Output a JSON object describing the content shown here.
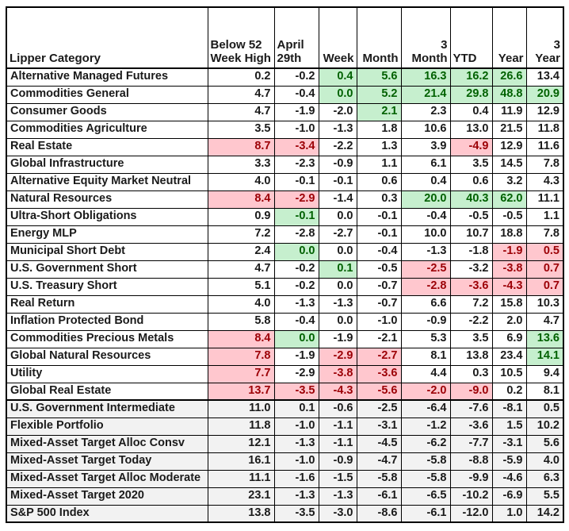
{
  "colors": {
    "positive_bg": "#c6efce",
    "positive_text": "#006100",
    "negative_bg": "#ffc7ce",
    "negative_text": "#9c0006",
    "summary_bg": "#f2f2f2",
    "grid": "#000000"
  },
  "chart_data": {
    "type": "table",
    "title": "",
    "columns": [
      "Lipper Category",
      "Below 52 Week High",
      "April 29th",
      "Week",
      "Month",
      "3 Month",
      "YTD",
      "Year",
      "3 Year"
    ],
    "highlight_legend": {
      "good": "green highlight",
      "bad": "pink highlight"
    },
    "rows": [
      {
        "category": "Alternative Managed Futures",
        "values": [
          0.2,
          -0.2,
          0.4,
          5.6,
          16.3,
          16.2,
          26.6,
          13.4
        ],
        "highlights": [
          "",
          "",
          "good",
          "good",
          "good",
          "good",
          "good",
          ""
        ],
        "section": "main"
      },
      {
        "category": "Commodities General",
        "values": [
          4.7,
          -0.4,
          0.0,
          5.2,
          21.4,
          29.8,
          48.8,
          20.9
        ],
        "highlights": [
          "",
          "",
          "good",
          "good",
          "good",
          "good",
          "good",
          "good"
        ],
        "section": "main"
      },
      {
        "category": "Consumer Goods",
        "values": [
          4.7,
          -1.9,
          -2.0,
          2.1,
          2.3,
          0.4,
          11.9,
          12.9
        ],
        "highlights": [
          "",
          "",
          "",
          "good",
          "",
          "",
          "",
          ""
        ],
        "section": "main"
      },
      {
        "category": "Commodities Agriculture",
        "values": [
          3.5,
          -1.0,
          -1.3,
          1.8,
          10.6,
          13.0,
          21.5,
          11.8
        ],
        "highlights": [
          "",
          "",
          "",
          "",
          "",
          "",
          "",
          ""
        ],
        "section": "main"
      },
      {
        "category": "Real Estate",
        "values": [
          8.7,
          -3.4,
          -2.2,
          1.3,
          3.9,
          -4.9,
          12.9,
          11.6
        ],
        "highlights": [
          "bad",
          "bad",
          "",
          "",
          "",
          "bad",
          "",
          ""
        ],
        "section": "main"
      },
      {
        "category": "Global Infrastructure",
        "values": [
          3.3,
          -2.3,
          -0.9,
          1.1,
          6.1,
          3.5,
          14.5,
          7.8
        ],
        "highlights": [
          "",
          "",
          "",
          "",
          "",
          "",
          "",
          ""
        ],
        "section": "main"
      },
      {
        "category": "Alternative Equity Market Neutral",
        "values": [
          4.0,
          -0.1,
          -0.1,
          0.6,
          0.4,
          0.6,
          3.2,
          4.3
        ],
        "highlights": [
          "",
          "",
          "",
          "",
          "",
          "",
          "",
          ""
        ],
        "section": "main"
      },
      {
        "category": "Natural Resources",
        "values": [
          8.4,
          -2.9,
          -1.4,
          0.3,
          20.0,
          40.3,
          62.0,
          11.1
        ],
        "highlights": [
          "bad",
          "bad",
          "",
          "",
          "good",
          "good",
          "good",
          ""
        ],
        "section": "main"
      },
      {
        "category": "Ultra-Short Obligations",
        "values": [
          0.9,
          -0.1,
          0.0,
          -0.1,
          -0.4,
          -0.5,
          -0.5,
          1.1
        ],
        "highlights": [
          "",
          "good",
          "",
          "",
          "",
          "",
          "",
          ""
        ],
        "section": "main"
      },
      {
        "category": "Energy MLP",
        "values": [
          7.2,
          -2.8,
          -2.7,
          -0.1,
          10.0,
          10.7,
          18.8,
          7.8
        ],
        "highlights": [
          "",
          "",
          "",
          "",
          "",
          "",
          "",
          ""
        ],
        "section": "main"
      },
      {
        "category": "Municipal Short Debt",
        "values": [
          2.4,
          0.0,
          0.0,
          -0.4,
          -1.3,
          -1.8,
          -1.9,
          0.5
        ],
        "highlights": [
          "",
          "good",
          "",
          "",
          "",
          "",
          "bad",
          "bad"
        ],
        "section": "main"
      },
      {
        "category": "U.S. Government Short",
        "values": [
          4.7,
          -0.2,
          0.1,
          -0.5,
          -2.5,
          -3.2,
          -3.8,
          0.7
        ],
        "highlights": [
          "",
          "",
          "good",
          "",
          "bad",
          "",
          "bad",
          "bad"
        ],
        "section": "main"
      },
      {
        "category": "U.S. Treasury Short",
        "values": [
          5.1,
          -0.2,
          0.0,
          -0.7,
          -2.8,
          -3.6,
          -4.3,
          0.7
        ],
        "highlights": [
          "",
          "",
          "",
          "",
          "bad",
          "bad",
          "bad",
          "bad"
        ],
        "section": "main"
      },
      {
        "category": "Real Return",
        "values": [
          4.0,
          -1.3,
          -1.3,
          -0.7,
          6.6,
          7.2,
          15.8,
          10.3
        ],
        "highlights": [
          "",
          "",
          "",
          "",
          "",
          "",
          "",
          ""
        ],
        "section": "main"
      },
      {
        "category": "Inflation Protected Bond",
        "values": [
          5.8,
          -0.4,
          0.0,
          -1.0,
          -0.9,
          -2.2,
          2.0,
          4.7
        ],
        "highlights": [
          "",
          "",
          "",
          "",
          "",
          "",
          "",
          ""
        ],
        "section": "main"
      },
      {
        "category": "Commodities Precious Metals",
        "values": [
          8.4,
          0.0,
          -1.9,
          -2.1,
          5.3,
          3.5,
          6.9,
          13.6
        ],
        "highlights": [
          "bad",
          "good",
          "",
          "",
          "",
          "",
          "",
          "good"
        ],
        "section": "main"
      },
      {
        "category": "Global Natural Resources",
        "values": [
          7.8,
          -1.9,
          -2.9,
          -2.7,
          8.1,
          13.8,
          23.4,
          14.1
        ],
        "highlights": [
          "bad",
          "",
          "bad",
          "bad",
          "",
          "",
          "",
          "good"
        ],
        "section": "main"
      },
      {
        "category": "Utility",
        "values": [
          7.7,
          -2.9,
          -3.8,
          -3.6,
          4.4,
          0.3,
          10.5,
          9.4
        ],
        "highlights": [
          "bad",
          "",
          "bad",
          "bad",
          "",
          "",
          "",
          ""
        ],
        "section": "main"
      },
      {
        "category": "Global Real Estate",
        "values": [
          13.7,
          -3.5,
          -4.3,
          -5.6,
          -2.0,
          -9.0,
          0.2,
          8.1
        ],
        "highlights": [
          "bad",
          "bad",
          "bad",
          "bad",
          "bad",
          "bad",
          "",
          ""
        ],
        "section": "main"
      },
      {
        "category": "U.S. Government Intermediate",
        "values": [
          11.0,
          0.1,
          -0.6,
          -2.5,
          -6.4,
          -7.6,
          -8.1,
          0.5
        ],
        "highlights": [
          "",
          "",
          "",
          "",
          "",
          "",
          "",
          ""
        ],
        "section": "summary"
      },
      {
        "category": "Flexible Portfolio",
        "values": [
          11.8,
          -1.0,
          -1.1,
          -3.1,
          -1.2,
          -3.6,
          1.5,
          10.2
        ],
        "highlights": [
          "",
          "",
          "",
          "",
          "",
          "",
          "",
          ""
        ],
        "section": "summary"
      },
      {
        "category": "Mixed-Asset Target Alloc Consv",
        "values": [
          12.1,
          -1.3,
          -1.1,
          -4.5,
          -6.2,
          -7.7,
          -3.1,
          5.6
        ],
        "highlights": [
          "",
          "",
          "",
          "",
          "",
          "",
          "",
          ""
        ],
        "section": "summary"
      },
      {
        "category": "Mixed-Asset Target Today",
        "values": [
          16.1,
          -1.0,
          -0.9,
          -4.7,
          -5.8,
          -8.8,
          -5.9,
          4.0
        ],
        "highlights": [
          "",
          "",
          "",
          "",
          "",
          "",
          "",
          ""
        ],
        "section": "summary"
      },
      {
        "category": "Mixed-Asset Target Alloc Moderate",
        "values": [
          11.1,
          -1.6,
          -1.5,
          -5.8,
          -5.8,
          -9.9,
          -4.6,
          6.3
        ],
        "highlights": [
          "",
          "",
          "",
          "",
          "",
          "",
          "",
          ""
        ],
        "section": "summary"
      },
      {
        "category": "Mixed-Asset Target 2020",
        "values": [
          23.1,
          -1.3,
          -1.3,
          -6.1,
          -6.5,
          -10.2,
          -6.9,
          5.5
        ],
        "highlights": [
          "",
          "",
          "",
          "",
          "",
          "",
          "",
          ""
        ],
        "section": "summary"
      },
      {
        "category": "S&P 500 Index",
        "values": [
          13.8,
          -3.5,
          -3.0,
          -8.6,
          -6.1,
          -12.0,
          1.0,
          14.2
        ],
        "highlights": [
          "",
          "",
          "",
          "",
          "",
          "",
          "",
          ""
        ],
        "section": "summary"
      }
    ]
  }
}
